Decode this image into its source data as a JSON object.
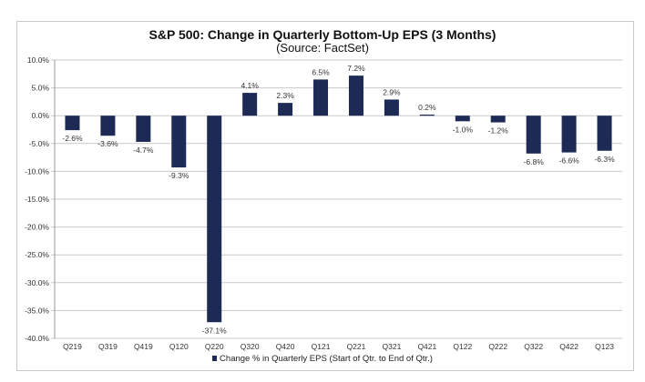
{
  "chart_data": {
    "type": "bar",
    "title": "S&P 500: Change in Quarterly Bottom-Up EPS (3 Months)",
    "subtitle": "(Source: FactSet)",
    "xlabel": "",
    "ylabel": "",
    "ylim": [
      -40,
      10
    ],
    "yticks": [
      "10.0%",
      "5.0%",
      "0.0%",
      "-5.0%",
      "-10.0%",
      "-15.0%",
      "-20.0%",
      "-25.0%",
      "-30.0%",
      "-35.0%",
      "-40.0%"
    ],
    "ytick_values": [
      10,
      5,
      0,
      -5,
      -10,
      -15,
      -20,
      -25,
      -30,
      -35,
      -40
    ],
    "grid": true,
    "legend_position": "bottom",
    "categories": [
      "Q219",
      "Q319",
      "Q419",
      "Q120",
      "Q220",
      "Q320",
      "Q420",
      "Q121",
      "Q221",
      "Q321",
      "Q421",
      "Q122",
      "Q222",
      "Q322",
      "Q422",
      "Q123"
    ],
    "series": [
      {
        "name": "Change % in Quarterly EPS (Start of Qtr. to End of Qtr.)",
        "color": "#1c2a55",
        "values": [
          -2.6,
          -3.6,
          -4.7,
          -9.3,
          -37.1,
          4.1,
          2.3,
          6.5,
          7.2,
          2.9,
          0.2,
          -1.0,
          -1.2,
          -6.8,
          -6.6,
          -6.3
        ],
        "labels": [
          "-2.6%",
          "-3.6%",
          "-4.7%",
          "-9.3%",
          "-37.1%",
          "4.1%",
          "2.3%",
          "6.5%",
          "7.2%",
          "2.9%",
          "0.2%",
          "-1.0%",
          "-1.2%",
          "-6.8%",
          "-6.6%",
          "-6.3%"
        ]
      }
    ]
  }
}
